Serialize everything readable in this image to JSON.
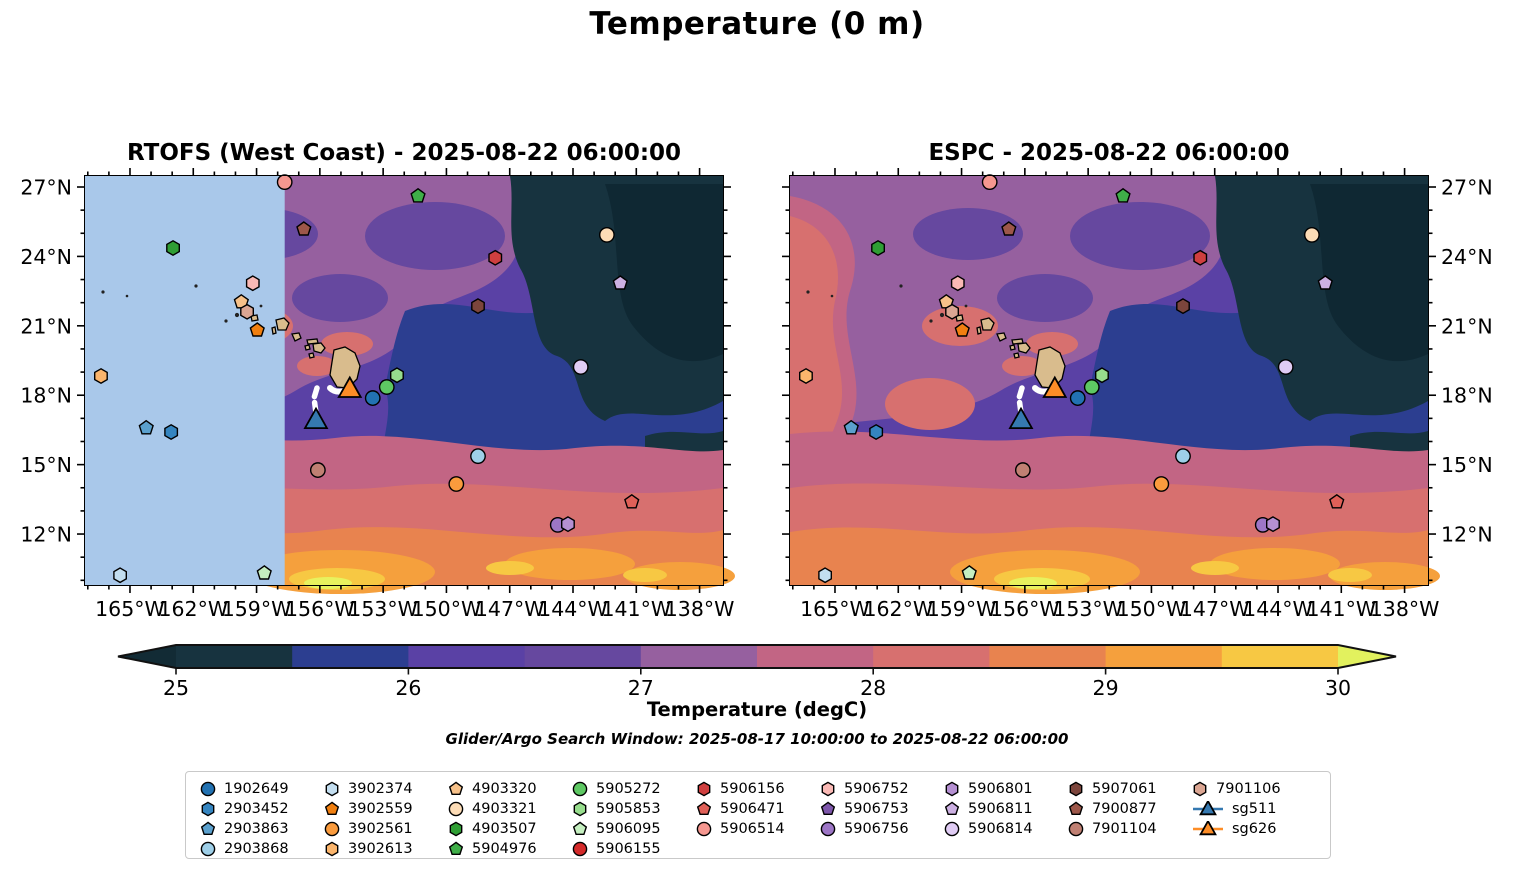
{
  "title": "Temperature (0 m)",
  "subtitle": "Glider/Argo Search Window: 2025-08-17 10:00:00 to 2025-08-22 06:00:00",
  "colorbar": {
    "label": "Temperature (degC)",
    "tick_labels": [
      "25",
      "26",
      "27",
      "28",
      "29",
      "30"
    ],
    "segment_colors": [
      "#17333f",
      "#2c3e90",
      "#5a41a5",
      "#66489f",
      "#96609f",
      "#c26584",
      "#d7706f",
      "#e8834f",
      "#f5a03d",
      "#f7c843"
    ],
    "extend_low": "#122b35",
    "extend_high": "#e2f15e"
  },
  "axes": {
    "lon_labels": [
      "165°W",
      "162°W",
      "159°W",
      "156°W",
      "153°W",
      "150°W",
      "147°W",
      "144°W",
      "141°W",
      "138°W"
    ],
    "lon_major_fracs": [
      0.0705,
      0.1697,
      0.2689,
      0.3681,
      0.4673,
      0.5665,
      0.6657,
      0.7649,
      0.8641,
      0.9633
    ],
    "lat_labels": [
      "27°N",
      "24°N",
      "21°N",
      "18°N",
      "15°N",
      "12°N"
    ],
    "lat_major_fracs": [
      0.0269,
      0.1966,
      0.3663,
      0.536,
      0.7057,
      0.8754
    ]
  },
  "chart_data": {
    "type": "heatmap",
    "subtype": "filled-contour-map-pair",
    "temperature_range_degC": [
      25,
      30
    ],
    "contour_interval_degC": 0.5,
    "panels": [
      {
        "id": "rtofs",
        "title": "RTOFS (West Coast) - 2025-08-22 06:00:00",
        "lat_label_side": "left",
        "nodata_overlay": true,
        "nodata_width_frac": 0.313,
        "nodata_color": "#a9c8ea"
      },
      {
        "id": "espc",
        "title": "ESPC - 2025-08-22 06:00:00",
        "lat_label_side": "right",
        "nodata_overlay": false,
        "nodata_width_frac": 0,
        "nodata_color": "#a9c8ea"
      }
    ],
    "legend_entries": [
      {
        "id": "1902649",
        "shape": "circle",
        "color": "#2272b2"
      },
      {
        "id": "2903452",
        "shape": "hexagon",
        "color": "#3585c0"
      },
      {
        "id": "2903863",
        "shape": "pentagon",
        "color": "#5ba0cd"
      },
      {
        "id": "2903868",
        "shape": "circle",
        "color": "#9ecfe8"
      },
      {
        "id": "3902374",
        "shape": "hexagon",
        "color": "#c3def0"
      },
      {
        "id": "3902559",
        "shape": "pentagon",
        "color": "#f07f10"
      },
      {
        "id": "3902561",
        "shape": "circle",
        "color": "#fa9b3d"
      },
      {
        "id": "3902613",
        "shape": "hexagon",
        "color": "#fbb56c"
      },
      {
        "id": "4903320",
        "shape": "pentagon",
        "color": "#f7c189"
      },
      {
        "id": "4903321",
        "shape": "circle",
        "color": "#fddcb6"
      },
      {
        "id": "4903507",
        "shape": "hexagon",
        "color": "#2f9e34"
      },
      {
        "id": "5904976",
        "shape": "pentagon",
        "color": "#3fae48"
      },
      {
        "id": "5905272",
        "shape": "circle",
        "color": "#5ec863"
      },
      {
        "id": "5905853",
        "shape": "hexagon",
        "color": "#97dd8d"
      },
      {
        "id": "5906095",
        "shape": "pentagon",
        "color": "#c5efc0"
      },
      {
        "id": "5906155",
        "shape": "circle",
        "color": "#d42a2a"
      },
      {
        "id": "5906156",
        "shape": "hexagon",
        "color": "#cf3f3f"
      },
      {
        "id": "5906471",
        "shape": "pentagon",
        "color": "#e06058"
      },
      {
        "id": "5906514",
        "shape": "circle",
        "color": "#f59790"
      },
      {
        "id": "5906752",
        "shape": "hexagon",
        "color": "#fab9b5"
      },
      {
        "id": "5906753",
        "shape": "pentagon",
        "color": "#7e57ab"
      },
      {
        "id": "5906756",
        "shape": "circle",
        "color": "#9d76c6"
      },
      {
        "id": "5906801",
        "shape": "hexagon",
        "color": "#b590d2"
      },
      {
        "id": "5906811",
        "shape": "pentagon",
        "color": "#ccb0e2"
      },
      {
        "id": "5906814",
        "shape": "circle",
        "color": "#e0ccf4"
      },
      {
        "id": "5907061",
        "shape": "hexagon",
        "color": "#7c453c"
      },
      {
        "id": "7900877",
        "shape": "pentagon",
        "color": "#9d574a"
      },
      {
        "id": "7901104",
        "shape": "circle",
        "color": "#c08073"
      },
      {
        "id": "7901106",
        "shape": "hexagon",
        "color": "#dba693"
      },
      {
        "id": "sg511",
        "shape": "triangle",
        "color": "#3579b1"
      },
      {
        "id": "sg626",
        "shape": "triangle",
        "color": "#fd8d27"
      }
    ],
    "legend_column_counts": [
      4,
      4,
      4,
      4,
      3,
      3,
      3,
      3,
      3
    ],
    "map_markers": [
      {
        "id": "5906514",
        "x": 0.313,
        "y": 0.015
      },
      {
        "id": "5904976",
        "x": 0.522,
        "y": 0.049
      },
      {
        "id": "7900877",
        "x": 0.343,
        "y": 0.13
      },
      {
        "id": "4903507",
        "x": 0.138,
        "y": 0.176
      },
      {
        "id": "4903321",
        "x": 0.818,
        "y": 0.144
      },
      {
        "id": "5906156",
        "x": 0.643,
        "y": 0.2
      },
      {
        "id": "5906811",
        "x": 0.839,
        "y": 0.262
      },
      {
        "id": "5906752",
        "x": 0.263,
        "y": 0.262
      },
      {
        "id": "4903320",
        "x": 0.245,
        "y": 0.308
      },
      {
        "id": "7901106",
        "x": 0.254,
        "y": 0.332
      },
      {
        "id": "5907061",
        "x": 0.616,
        "y": 0.318
      },
      {
        "id": "3902559",
        "x": 0.27,
        "y": 0.377
      },
      {
        "id": "3902613",
        "x": 0.025,
        "y": 0.489
      },
      {
        "id": "5906814",
        "x": 0.777,
        "y": 0.467
      },
      {
        "id": "5905853",
        "x": 0.489,
        "y": 0.487
      },
      {
        "id": "5905272",
        "x": 0.473,
        "y": 0.516
      },
      {
        "id": "sg626",
        "x": 0.415,
        "y": 0.523
      },
      {
        "id": "1902649",
        "x": 0.451,
        "y": 0.543
      },
      {
        "id": "sg511",
        "x": 0.362,
        "y": 0.599
      },
      {
        "id": "2903863",
        "x": 0.096,
        "y": 0.616
      },
      {
        "id": "2903452",
        "x": 0.135,
        "y": 0.626
      },
      {
        "id": "2903868",
        "x": 0.616,
        "y": 0.685
      },
      {
        "id": "7901104",
        "x": 0.365,
        "y": 0.719
      },
      {
        "id": "3902561",
        "x": 0.582,
        "y": 0.753
      },
      {
        "id": "5906471",
        "x": 0.857,
        "y": 0.797
      },
      {
        "id": "5906756",
        "x": 0.741,
        "y": 0.853
      },
      {
        "id": "5906801",
        "x": 0.757,
        "y": 0.851
      },
      {
        "id": "3902374",
        "x": 0.055,
        "y": 0.976
      },
      {
        "id": "5906095",
        "x": 0.281,
        "y": 0.971
      }
    ],
    "glider_tracks": [
      {
        "id": "sg511",
        "track_color": "#ffffff",
        "style": "dashed"
      },
      {
        "id": "sg626",
        "track_color": "#ffffff",
        "style": "solid"
      }
    ],
    "land_color": "#d9bc8d"
  }
}
